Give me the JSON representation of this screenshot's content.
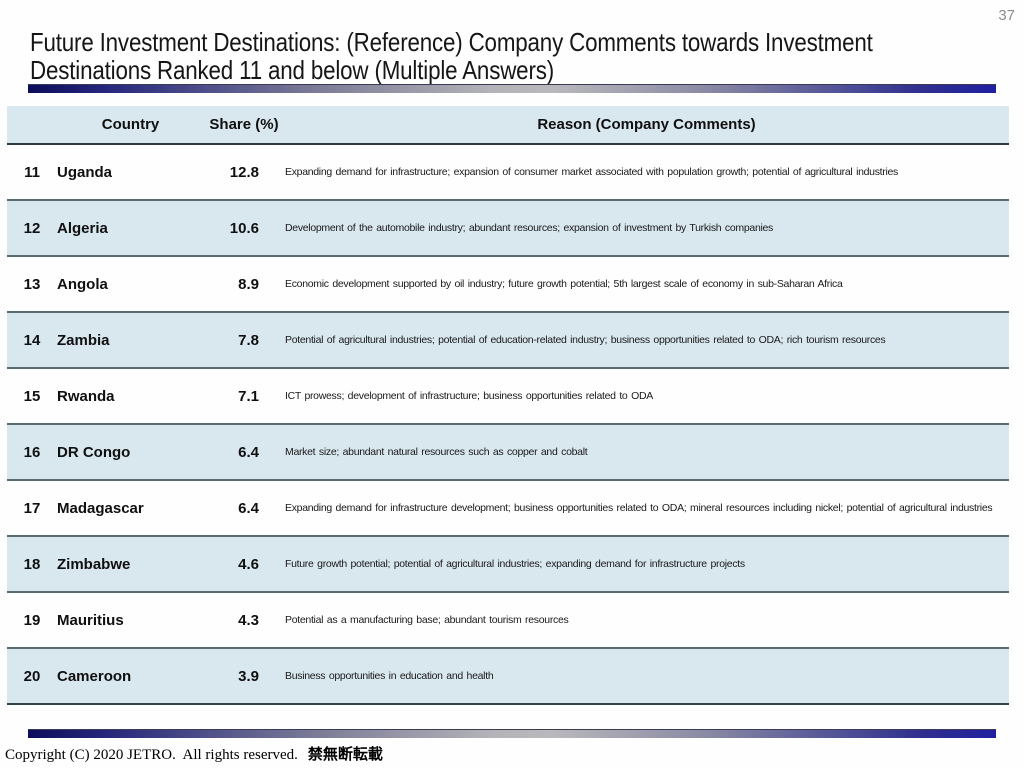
{
  "page_number": "37",
  "title": "Future Investment Destinations: (Reference) Company Comments towards Investment Destinations Ranked 11 and below (Multiple Answers)",
  "table": {
    "headers": {
      "country": "Country",
      "share": "Share (%)",
      "reason": "Reason (Company Comments)"
    },
    "rows": [
      {
        "rank": "11",
        "country": "Uganda",
        "share": "12.8",
        "reason": "Expanding demand for infrastructure; expansion of consumer market associated with population growth; potential of agricultural industries"
      },
      {
        "rank": "12",
        "country": "Algeria",
        "share": "10.6",
        "reason": "Development of the automobile industry; abundant resources; expansion of investment by Turkish companies"
      },
      {
        "rank": "13",
        "country": "Angola",
        "share": "8.9",
        "reason": "Economic development supported by oil industry; future growth potential; 5th largest scale of economy in sub-Saharan Africa"
      },
      {
        "rank": "14",
        "country": "Zambia",
        "share": "7.8",
        "reason": "Potential of agricultural industries; potential of education-related industry; business opportunities related to ODA; rich tourism resources"
      },
      {
        "rank": "15",
        "country": "Rwanda",
        "share": "7.1",
        "reason": "ICT prowess; development of infrastructure; business opportunities related to ODA"
      },
      {
        "rank": "16",
        "country": "DR Congo",
        "share": "6.4",
        "reason": "Market size; abundant natural resources such as copper and cobalt"
      },
      {
        "rank": "17",
        "country": "Madagascar",
        "share": "6.4",
        "reason": "Expanding demand for infrastructure development;  business opportunities related to ODA; mineral resources including nickel; potential of agricultural industries"
      },
      {
        "rank": "18",
        "country": "Zimbabwe",
        "share": "4.6",
        "reason": "Future growth potential; potential of agricultural industries; expanding demand for infrastructure projects"
      },
      {
        "rank": "19",
        "country": "Mauritius",
        "share": "4.3",
        "reason": "Potential as a manufacturing base; abundant tourism resources"
      },
      {
        "rank": "20",
        "country": "Cameroon",
        "share": "3.9",
        "reason": "Business opportunities in education and health"
      }
    ]
  },
  "footer": {
    "copyright_en": "Copyright (C) 2020 JETRO.  All rights reserved.",
    "copyright_jp": "禁無断転載"
  },
  "colors": {
    "row_highlight": "#d9e7ef",
    "row_border": "#5a6a71",
    "header_border": "#2c3b42",
    "bar_navy": "#1b1b7e",
    "bar_gray": "#b9b9bc",
    "page_number_gray": "#8c8c8c"
  }
}
